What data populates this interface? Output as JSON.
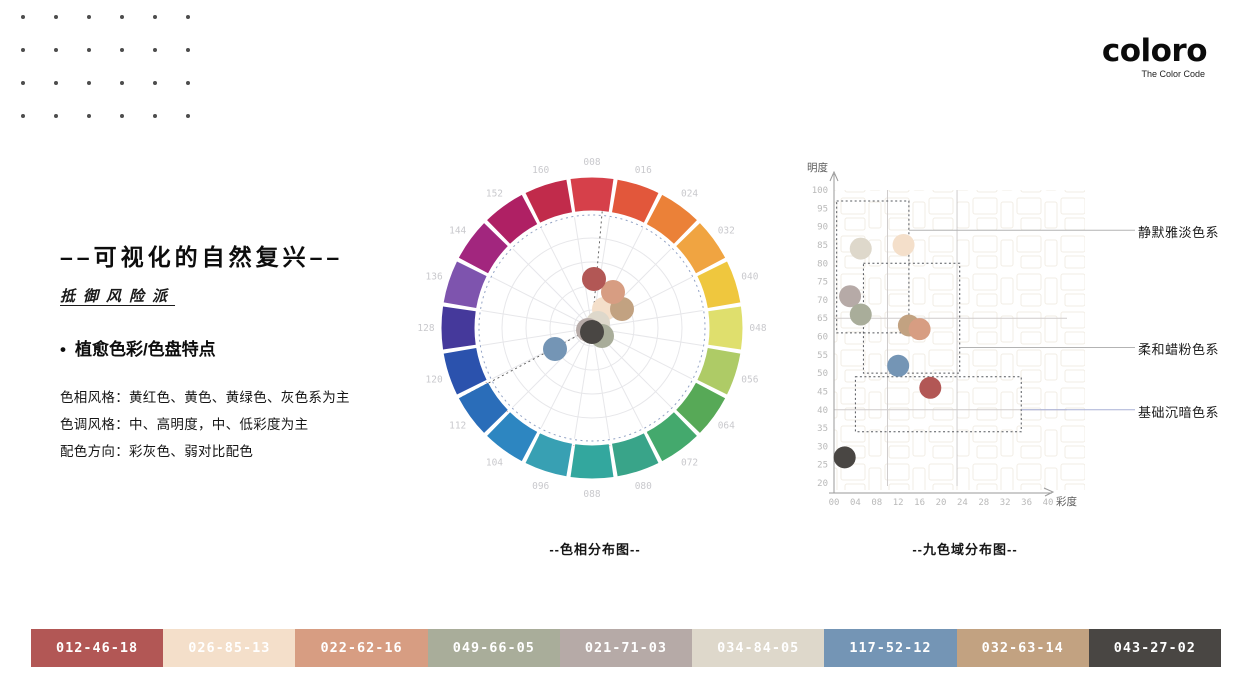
{
  "header": {
    "logo_text": "coloro",
    "logo_tagline": "The Color Code"
  },
  "left_panel": {
    "title": "––可视化的自然复兴––",
    "subtitle": "抵御风险派",
    "bullet_glyph": "•",
    "bullet_label": "植愈色彩/色盘特点",
    "detail_lines": [
      "色相风格：黄红色、黄色、黄绿色、灰色系为主",
      "色调风格：中、高明度，中、低彩度为主",
      "配色方向：彩灰色、弱对比配色"
    ]
  },
  "colors": [
    {
      "code": "012-46-18",
      "hex": "#b25755",
      "hue": 12,
      "lightness": 46,
      "chroma": 18,
      "wheel_dx": 2,
      "wheel_dy": -49
    },
    {
      "code": "026-85-13",
      "hex": "#f4dfca",
      "hue": 26,
      "lightness": 85,
      "chroma": 13,
      "wheel_dx": 12,
      "wheel_dy": -19
    },
    {
      "code": "022-62-16",
      "hex": "#d79d82",
      "hue": 22,
      "lightness": 62,
      "chroma": 16,
      "wheel_dx": 21,
      "wheel_dy": -36
    },
    {
      "code": "049-66-05",
      "hex": "#a9ad9a",
      "hue": 49,
      "lightness": 66,
      "chroma": 5,
      "wheel_dx": 10,
      "wheel_dy": 8
    },
    {
      "code": "021-71-03",
      "hex": "#b6aaa7",
      "hue": 21,
      "lightness": 71,
      "chroma": 3,
      "wheel_dx": -4,
      "wheel_dy": 2
    },
    {
      "code": "034-84-05",
      "hex": "#ded8cb",
      "hue": 34,
      "lightness": 84,
      "chroma": 5,
      "wheel_dx": 6,
      "wheel_dy": -5
    },
    {
      "code": "117-52-12",
      "hex": "#7495b5",
      "hue": 117,
      "lightness": 52,
      "chroma": 12,
      "wheel_dx": -37,
      "wheel_dy": 21
    },
    {
      "code": "032-63-14",
      "hex": "#c2a281",
      "hue": 32,
      "lightness": 63,
      "chroma": 14,
      "wheel_dx": 30,
      "wheel_dy": -19
    },
    {
      "code": "043-27-02",
      "hex": "#494643",
      "hue": 43,
      "lightness": 27,
      "chroma": 2,
      "wheel_dx": 0,
      "wheel_dy": 4
    }
  ],
  "chart_data": [
    {
      "type": "scatter",
      "name": "hue-wheel",
      "title": "--色相分布图--",
      "hue_ring": [
        {
          "label": "008",
          "color": "#d6404a"
        },
        {
          "label": "016",
          "color": "#e2573b"
        },
        {
          "label": "024",
          "color": "#eb8138"
        },
        {
          "label": "032",
          "color": "#f0a441"
        },
        {
          "label": "040",
          "color": "#efc73e"
        },
        {
          "label": "048",
          "color": "#dfdf6d"
        },
        {
          "label": "056",
          "color": "#aecb66"
        },
        {
          "label": "064",
          "color": "#57a957"
        },
        {
          "label": "072",
          "color": "#44a96d"
        },
        {
          "label": "080",
          "color": "#39a489"
        },
        {
          "label": "088",
          "color": "#33a79e"
        },
        {
          "label": "096",
          "color": "#38a0b3"
        },
        {
          "label": "104",
          "color": "#2d86c1"
        },
        {
          "label": "112",
          "color": "#2a6db9"
        },
        {
          "label": "120",
          "color": "#2b52ad"
        },
        {
          "label": "128",
          "color": "#45399b"
        },
        {
          "label": "136",
          "color": "#7e54ae"
        },
        {
          "label": "144",
          "color": "#a2267e"
        },
        {
          "label": "152",
          "color": "#af2064"
        },
        {
          "label": "160",
          "color": "#c12b4b"
        }
      ],
      "points": [
        {
          "code": "012-46-18",
          "hex": "#b25755",
          "hue": 12,
          "chroma": 18
        },
        {
          "code": "026-85-13",
          "hex": "#f4dfca",
          "hue": 26,
          "chroma": 13
        },
        {
          "code": "022-62-16",
          "hex": "#d79d82",
          "hue": 22,
          "chroma": 16
        },
        {
          "code": "049-66-05",
          "hex": "#a9ad9a",
          "hue": 49,
          "chroma": 5
        },
        {
          "code": "021-71-03",
          "hex": "#b6aaa7",
          "hue": 21,
          "chroma": 3
        },
        {
          "code": "034-84-05",
          "hex": "#ded8cb",
          "hue": 34,
          "chroma": 5
        },
        {
          "code": "117-52-12",
          "hex": "#7495b5",
          "hue": 117,
          "chroma": 12
        },
        {
          "code": "032-63-14",
          "hex": "#c2a281",
          "hue": 32,
          "chroma": 14
        },
        {
          "code": "043-27-02",
          "hex": "#494643",
          "hue": 43,
          "chroma": 2
        }
      ],
      "dashed_radial_angles_deg": [
        5,
        242
      ],
      "dotted_circle_radius_px": 113
    },
    {
      "type": "scatter",
      "name": "nine-color-domain",
      "title": "--九色域分布图--",
      "xlabel": "彩度",
      "ylabel": "明度",
      "xlim": [
        0,
        40
      ],
      "ylim": [
        20,
        100
      ],
      "xticks": [
        "00",
        "04",
        "08",
        "12",
        "16",
        "20",
        "24",
        "28",
        "32",
        "36",
        "40"
      ],
      "yticks": [
        100,
        95,
        90,
        85,
        80,
        75,
        70,
        65,
        60,
        55,
        50,
        45,
        40,
        35,
        30,
        25,
        20
      ],
      "ref_vlines_x": [
        10,
        23
      ],
      "ref_hlines_y": [
        65,
        40
      ],
      "groups": [
        {
          "label": "静默雅淡色系",
          "box": {
            "x1": 0.5,
            "y1": 61,
            "x2": 14,
            "y2": 97
          },
          "connector_y": 89,
          "connector_color": "#b3b3b3"
        },
        {
          "label": "柔和蜡粉色系",
          "box": {
            "x1": 5.5,
            "y1": 50,
            "x2": 23.5,
            "y2": 80
          },
          "connector_y": 57,
          "connector_color": "#b3b3b3"
        },
        {
          "label": "基础沉暗色系",
          "box": {
            "x1": 4,
            "y1": 34,
            "x2": 35,
            "y2": 49
          },
          "connector_y": 40,
          "connector_color": "#a9b0d6"
        }
      ],
      "points": [
        {
          "code": "026-85-13",
          "x": 13,
          "y": 85,
          "hex": "#f4dfca"
        },
        {
          "code": "034-84-05",
          "x": 5,
          "y": 84,
          "hex": "#ded8cb"
        },
        {
          "code": "021-71-03",
          "x": 3,
          "y": 71,
          "hex": "#b6aaa7"
        },
        {
          "code": "049-66-05",
          "x": 5,
          "y": 66,
          "hex": "#a9ad9a"
        },
        {
          "code": "032-63-14",
          "x": 14,
          "y": 63,
          "hex": "#c2a281"
        },
        {
          "code": "022-62-16",
          "x": 16,
          "y": 62,
          "hex": "#d79d82"
        },
        {
          "code": "117-52-12",
          "x": 12,
          "y": 52,
          "hex": "#7495b5"
        },
        {
          "code": "012-46-18",
          "x": 18,
          "y": 46,
          "hex": "#b25755"
        },
        {
          "code": "043-27-02",
          "x": 2,
          "y": 27,
          "hex": "#494643"
        }
      ]
    }
  ],
  "captions": {
    "wheel": "--色相分布图--",
    "domain": "--九色域分布图--"
  }
}
